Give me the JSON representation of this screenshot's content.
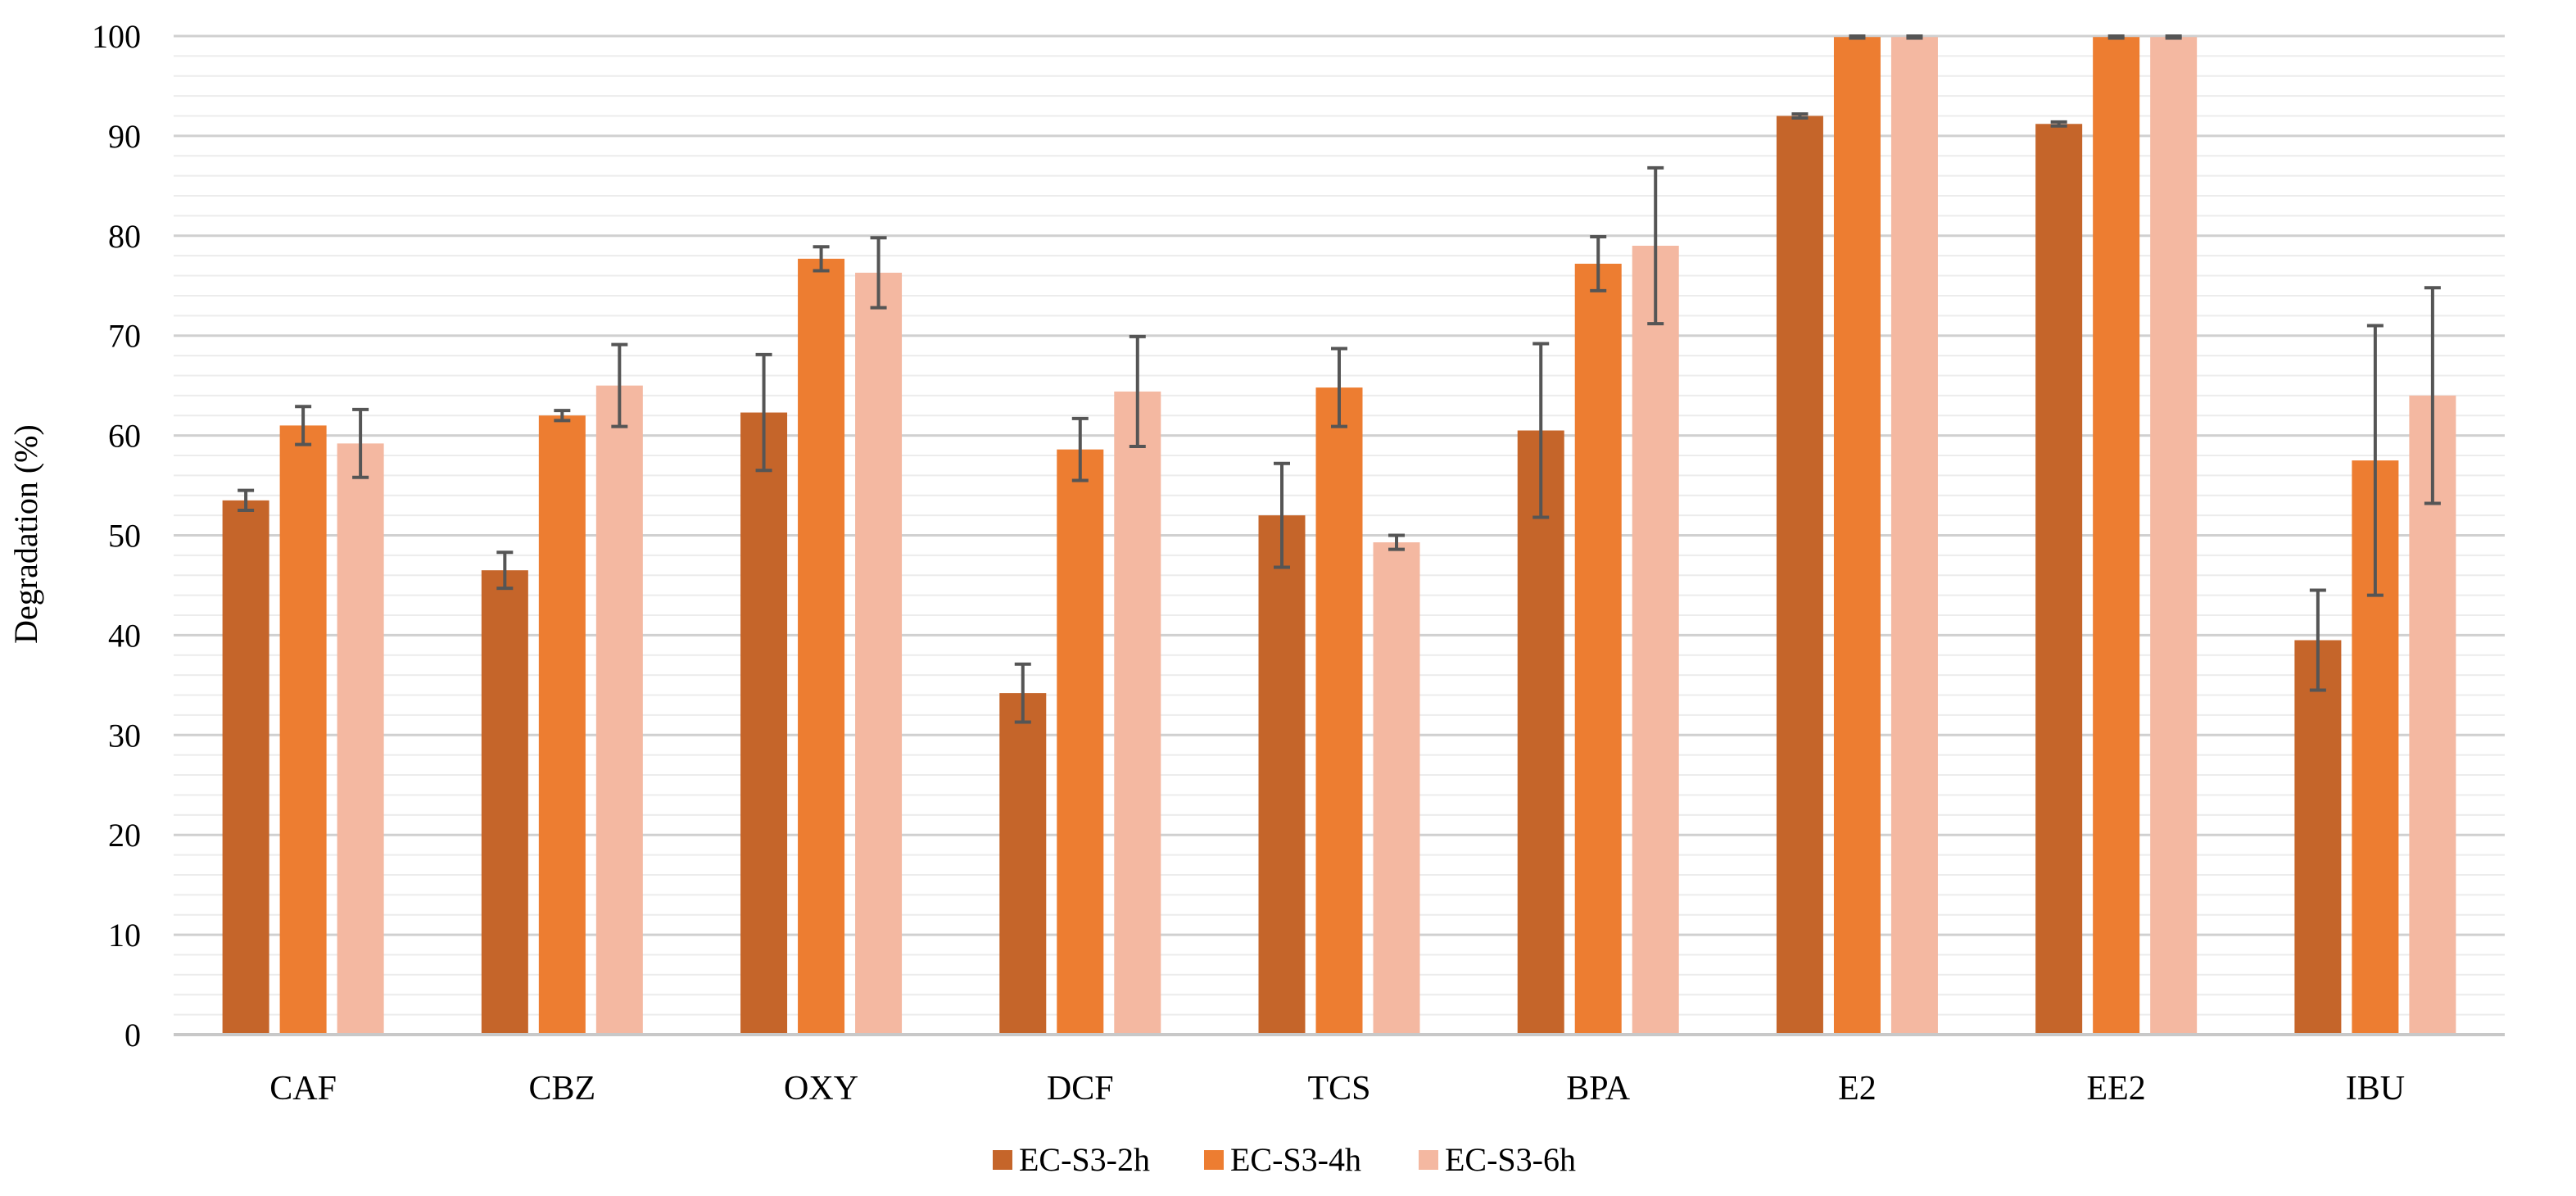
{
  "chart_data": {
    "type": "bar",
    "title": "",
    "xlabel": "",
    "ylabel": "Degradation (%)",
    "ylim": [
      0,
      100
    ],
    "yticks": [
      "0",
      "10",
      "20",
      "30",
      "40",
      "50",
      "60",
      "70",
      "80",
      "90",
      "100"
    ],
    "grid": true,
    "legend_position": "bottom-center",
    "categories": [
      "CAF",
      "CBZ",
      "OXY",
      "DCF",
      "TCS",
      "BPA",
      "E2",
      "EE2",
      "IBU"
    ],
    "series": [
      {
        "name": "EC-S3-2h",
        "color": "#C5652A",
        "values": [
          53.5,
          46.5,
          62.3,
          34.2,
          52.0,
          60.5,
          92.0,
          91.2,
          39.5
        ],
        "errors": [
          1.0,
          1.8,
          5.8,
          2.9,
          5.2,
          8.7,
          0.2,
          0.2,
          5.0
        ]
      },
      {
        "name": "EC-S3-4h",
        "color": "#ED7D31",
        "values": [
          61.0,
          62.0,
          77.7,
          58.6,
          64.8,
          77.2,
          99.9,
          99.9,
          57.5
        ],
        "errors": [
          1.9,
          0.5,
          1.2,
          3.1,
          3.9,
          2.7,
          0.1,
          0.1,
          13.5
        ]
      },
      {
        "name": "EC-S3-6h",
        "color": "#F4B8A1",
        "values": [
          59.2,
          65.0,
          76.3,
          64.4,
          49.3,
          79.0,
          99.9,
          99.9,
          64.0
        ],
        "errors": [
          3.4,
          4.1,
          3.5,
          5.5,
          0.7,
          7.8,
          0.1,
          0.1,
          10.8
        ]
      }
    ]
  }
}
